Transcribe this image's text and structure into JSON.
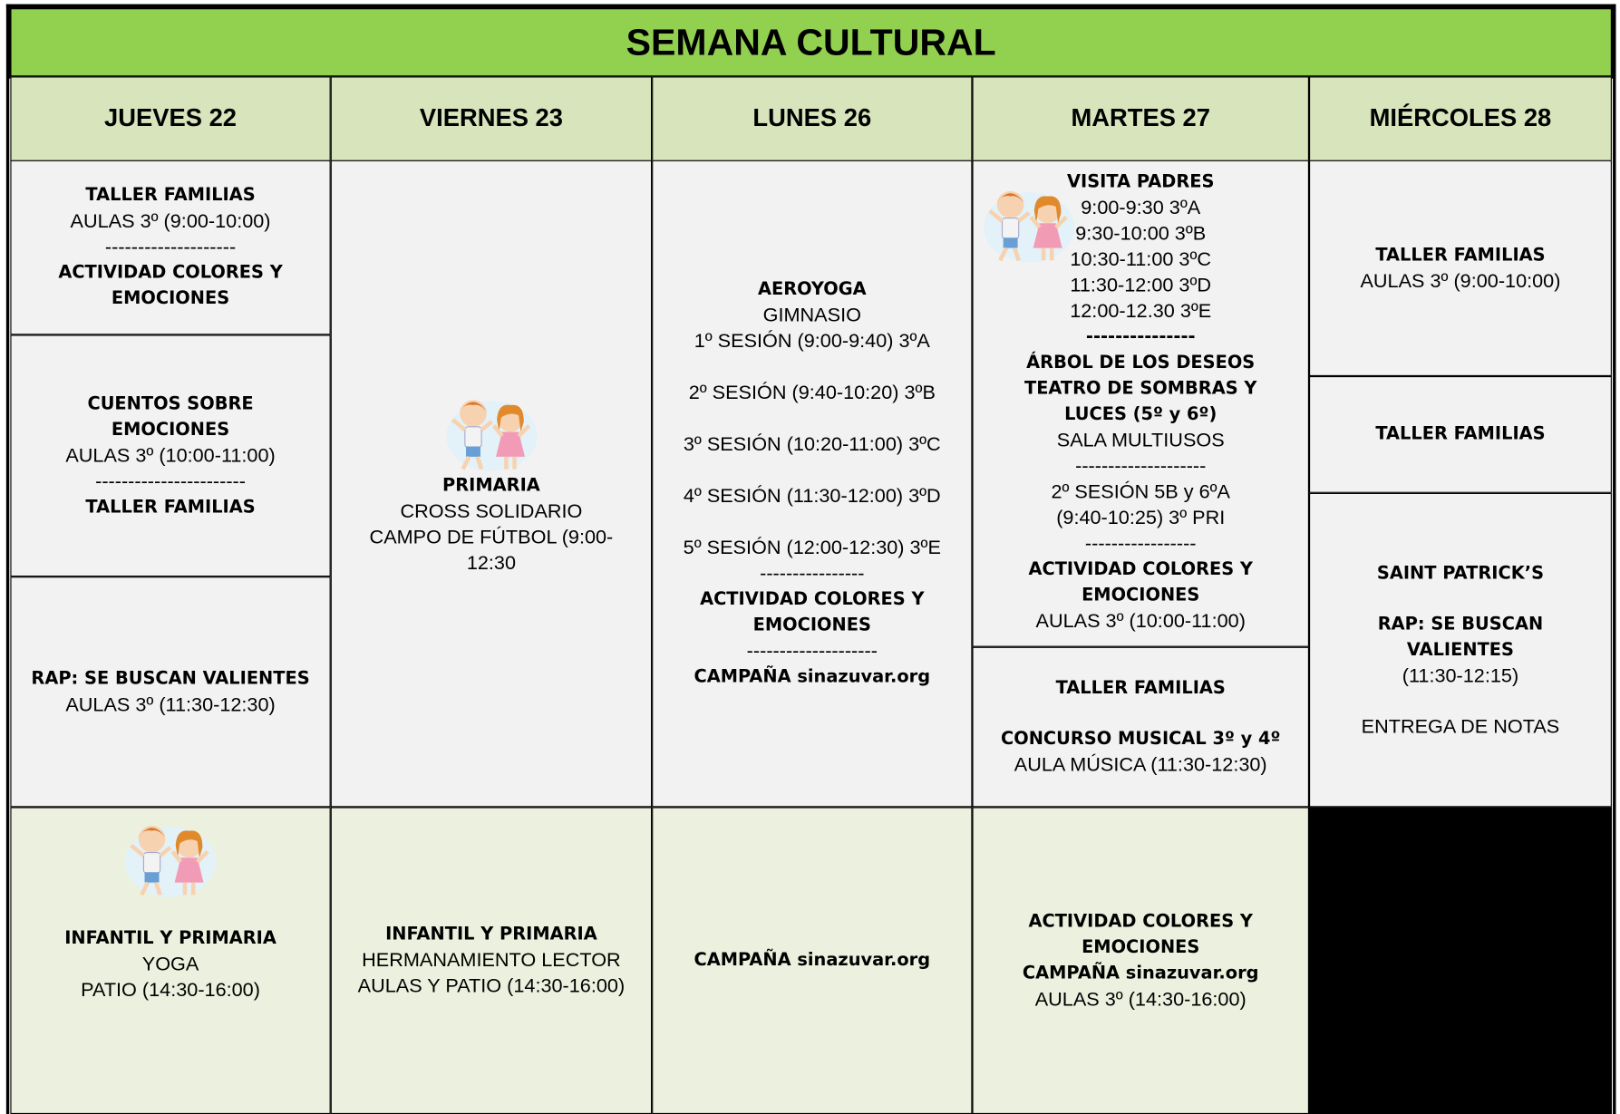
{
  "title": "SEMANA CULTURAL",
  "days": [
    "JUEVES 22",
    "VIERNES 23",
    "LUNES 26",
    "MARTES 27",
    "MIÉRCOLES 28"
  ],
  "cells": [
    {
      "lines": [
        {
          "heading": "TALLER FAMILIAS"
        },
        {
          "text": "AULAS 3º (9:00-10:00)"
        },
        {
          "text": "--------------------"
        },
        {
          "heading": "ACTIVIDAD COLORES Y EMOCIONES"
        }
      ]
    },
    {
      "lines": [
        {
          "heading": "CUENTOS SOBRE EMOCIONES"
        },
        {
          "text": "AULAS 3º (10:00-11:00)"
        },
        {
          "text": "-----------------------"
        },
        {
          "heading": "TALLER FAMILIAS"
        }
      ]
    },
    {
      "lines": [
        {
          "heading": "RAP: SE BUSCAN VALIENTES"
        },
        {
          "text": "AULAS 3º (11:30-12:30)"
        }
      ]
    },
    {
      "lines": [
        {
          "heading": "PRIMARIA"
        },
        {
          "text": "CROSS SOLIDARIO"
        },
        {
          "text": "CAMPO DE FÚTBOL (9:00-12:30"
        }
      ]
    },
    {
      "lines": [
        {
          "heading": "AEROYOGA"
        },
        {
          "text": "GIMNASIO"
        },
        {
          "text": "1º SESIÓN (9:00-9:40)  3ºA"
        },
        {
          "text": "2º SESIÓN (9:40-10:20) 3ºB"
        },
        {
          "text": "3º SESIÓN (10:20-11:00) 3ºC"
        },
        {
          "text": "4º SESIÓN (11:30-12:00) 3ºD"
        },
        {
          "text": "5º SESIÓN (12:00-12:30) 3ºE"
        },
        {
          "text": "----------------"
        },
        {
          "heading": "ACTIVIDAD COLORES Y EMOCIONES"
        },
        {
          "text": "--------------------"
        },
        {
          "heading": "CAMPAÑA sinazuvar.org"
        }
      ]
    },
    {
      "lines": [
        {
          "heading": "VISITA PADRES"
        },
        {
          "text": "9:00-9:30 3ºA"
        },
        {
          "text": "9:30-10:00 3ºB"
        },
        {
          "text": "10:30-11:00 3ºC"
        },
        {
          "text": "11:30-12:00 3ºD"
        },
        {
          "text": "12:00-12.30 3ºE"
        },
        {
          "heading": "---------------"
        },
        {
          "heading": "ÁRBOL DE LOS DESEOS"
        },
        {
          "heading": "TEATRO DE SOMBRAS Y LUCES (5º y 6º)"
        },
        {
          "text": "SALA MULTIUSOS"
        },
        {
          "text": "--------------------"
        },
        {
          "text": "2º SESIÓN 5B y 6ºA"
        },
        {
          "text": "(9:40-10:25) 3º PRI"
        },
        {
          "text": "-----------------"
        },
        {
          "heading": "ACTIVIDAD COLORES Y EMOCIONES"
        },
        {
          "text": "AULAS 3º (10:00-11:00)"
        }
      ]
    },
    {
      "lines": [
        {
          "heading": "TALLER FAMILIAS"
        },
        {
          "heading": "CONCURSO MUSICAL 3º y 4º"
        },
        {
          "text": "AULA MÚSICA (11:30-12:30)"
        }
      ]
    },
    {
      "lines": [
        {
          "heading": "TALLER FAMILIAS"
        },
        {
          "text": "AULAS 3º (9:00-10:00)"
        }
      ]
    },
    {
      "lines": [
        {
          "heading": "TALLER FAMILIAS"
        }
      ]
    },
    {
      "lines": [
        {
          "heading": "SAINT PATRICK’S"
        },
        {
          "heading": "RAP: SE BUSCAN VALIENTES"
        },
        {
          "text": "(11:30-12:15)"
        },
        {
          "text": "ENTREGA DE NOTAS"
        }
      ]
    },
    {
      "lines": [
        {
          "heading": "INFANTIL Y PRIMARIA"
        },
        {
          "text": "YOGA"
        },
        {
          "text": "PATIO (14:30-16:00)"
        }
      ]
    },
    {
      "lines": [
        {
          "heading": "INFANTIL Y PRIMARIA"
        },
        {
          "text": "HERMANAMIENTO LECTOR"
        },
        {
          "text": "AULAS Y PATIO (14:30-16:00)"
        }
      ]
    },
    {
      "lines": [
        {
          "heading": "CAMPAÑA sinazuvar.org"
        }
      ]
    },
    {
      "lines": [
        {
          "heading": "ACTIVIDAD COLORES Y EMOCIONES"
        },
        {
          "heading": "CAMPAÑA sinazuvar.org"
        },
        {
          "text": "AULAS 3º (14:30-16:00)"
        }
      ]
    }
  ]
}
